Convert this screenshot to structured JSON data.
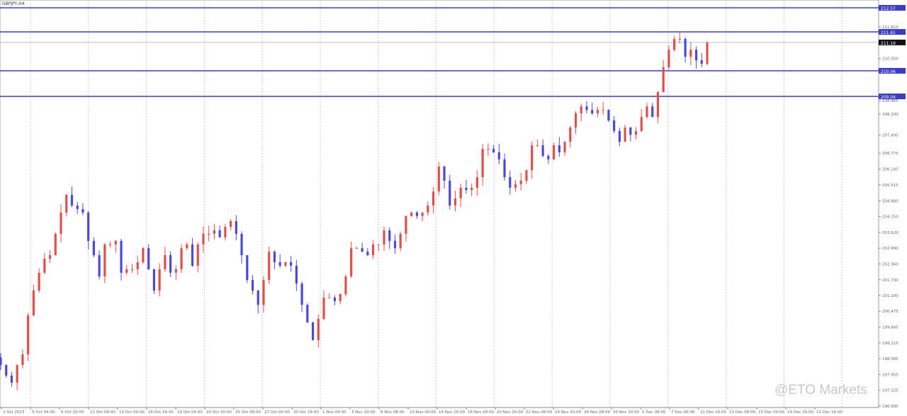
{
  "window": {
    "title": "GBPJPY,H4"
  },
  "watermark": "@ETO Markets",
  "chart_data": {
    "type": "candlestick",
    "symbol": "GBPJPY,H4",
    "colors": {
      "up": "#e0504a",
      "down": "#4a4ad8",
      "levels": "#3a3acd",
      "grid": "#c8c8c8"
    },
    "closes": [
      198.33,
      197.91,
      197.63,
      198.33,
      198.76,
      200.31,
      201.3,
      202.01,
      202.57,
      202.71,
      203.56,
      204.41,
      205.11,
      204.69,
      204.55,
      204.41,
      203.28,
      202.71,
      201.86,
      203.14,
      203.14,
      203.28,
      202.01,
      202.15,
      202.15,
      202.43,
      202.99,
      202.15,
      201.3,
      202.15,
      202.71,
      202.01,
      202.15,
      202.99,
      203.14,
      202.29,
      203.14,
      203.56,
      203.56,
      203.7,
      203.42,
      203.84,
      204.07,
      203.56,
      202.71,
      201.72,
      201.3,
      200.73,
      201.72,
      202.85,
      202.43,
      202.29,
      202.43,
      202.29,
      201.58,
      200.73,
      200.03,
      199.32,
      200.17,
      201.02,
      201.02,
      200.88,
      201.16,
      201.86,
      202.99,
      202.99,
      202.85,
      202.71,
      203.14,
      203.14,
      203.7,
      203.28,
      202.99,
      203.56,
      204.27,
      204.41,
      204.27,
      204.41,
      204.69,
      205.25,
      206.24,
      205.68,
      204.69,
      204.97,
      205.4,
      205.31,
      205.4,
      205.82,
      206.95,
      206.95,
      206.81,
      206.53,
      205.82,
      205.4,
      205.54,
      205.68,
      206.1,
      207.09,
      207.09,
      206.67,
      206.53,
      207.09,
      206.81,
      207.23,
      207.8,
      208.36,
      208.64,
      208.5,
      208.36,
      208.5,
      208.5,
      208.08,
      207.66,
      207.23,
      207.8,
      207.51,
      207.66,
      208.22,
      208.64,
      208.22,
      209.21,
      210.2,
      210.9,
      211.33,
      211.33,
      210.62,
      210.9,
      210.48,
      210.34,
      211.19
    ],
    "ylim": [
      196.4,
      212.9
    ],
    "y_ticks": [
      211.81,
      210.55,
      208.865,
      208.33,
      207.495,
      206.775,
      206.145,
      205.515,
      204.88,
      204.25,
      203.62,
      202.99,
      202.36,
      201.73,
      201.1,
      200.475,
      199.845,
      199.215,
      198.585,
      197.955,
      197.325,
      196.695
    ],
    "levels": [
      212.57,
      211.61,
      210.06,
      209.04
    ],
    "current_price": 211.19,
    "x_ticks": [
      "2 Oct 2023",
      "5 Oct 04:00",
      "6 Oct 20:00",
      "11 Oct 08:00",
      "13 Oct 00:00",
      "16 Oct 16:00",
      "19 Oct 04:00",
      "20 Oct 20:00",
      "25 Oct 08:00",
      "27 Oct 00:00",
      "30 Oct 16:00",
      "1 Nov 04:00",
      "3 Nov 20:00",
      "8 Nov 08:00",
      "10 Nov 00:00",
      "14 Nov 16:00",
      "16 Nov 04:00",
      "20 Nov 20:00",
      "22 Nov 08:00",
      "24 Nov 20:00",
      "28 Nov 08:00",
      "30 Nov 20:00",
      "5 Dec 08:00",
      "7 Dec 00:00",
      "11 Dec 16:00",
      "13 Dec 08:00",
      "15 Dec 00:00",
      "19 Dec 16:00",
      "21 Dec 16:00"
    ],
    "grid": true
  }
}
